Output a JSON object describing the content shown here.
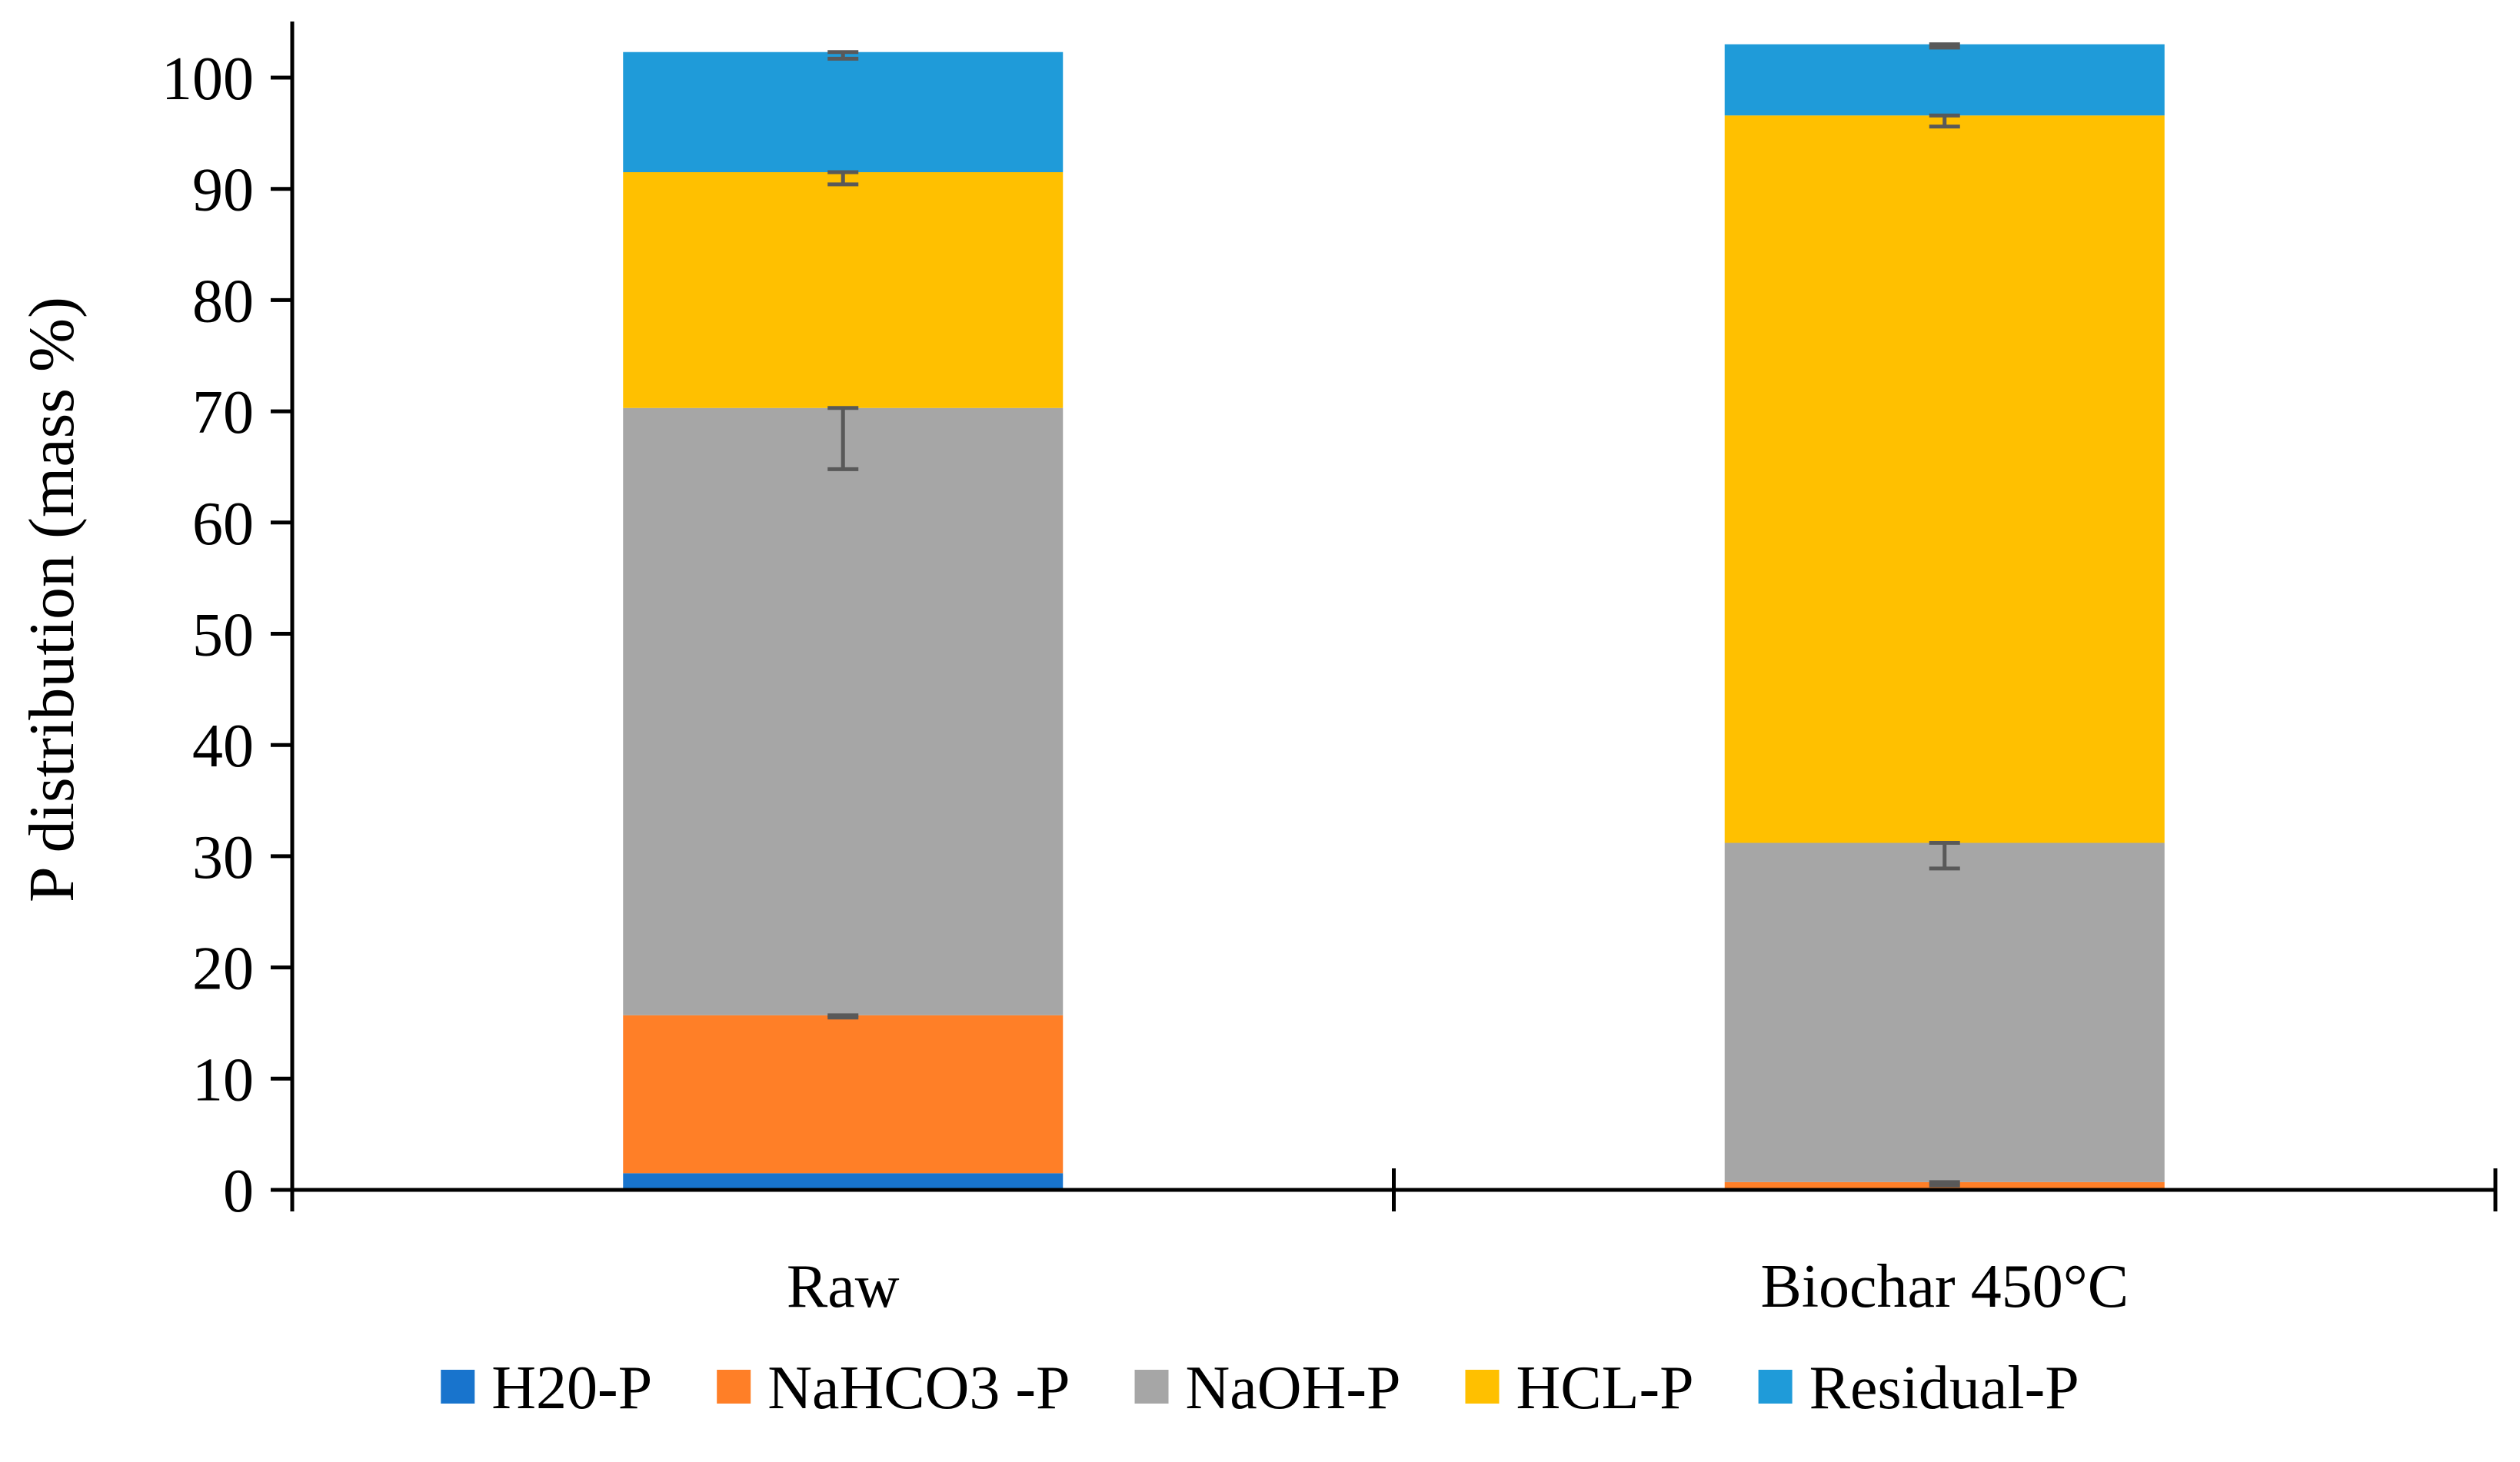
{
  "chart_data": {
    "type": "stacked_bar",
    "title": "",
    "xlabel": "",
    "ylabel": "P distribution (mass %)",
    "ylim": [
      0,
      100
    ],
    "yticks": [
      0,
      10,
      20,
      30,
      40,
      50,
      60,
      70,
      80,
      90,
      100
    ],
    "grid": false,
    "legend_position": "bottom",
    "categories": [
      "Raw",
      "Biochar 450°C"
    ],
    "series": [
      {
        "name": "H20-P",
        "color": "#1874CD",
        "values": [
          1.5,
          0.0
        ],
        "errors": [
          null,
          null
        ]
      },
      {
        "name": "NaHCO3 -P",
        "color": "#FF7F27",
        "values": [
          14.2,
          0.7
        ],
        "errors": [
          0.2,
          0.3
        ]
      },
      {
        "name": "NaOH-P",
        "color": "#A6A6A6",
        "values": [
          54.6,
          30.5
        ],
        "errors": [
          5.5,
          2.3
        ]
      },
      {
        "name": "HCL-P",
        "color": "#FFC000",
        "values": [
          21.2,
          65.4
        ],
        "errors": [
          1.1,
          1.0
        ]
      },
      {
        "name": "Residual-P",
        "color": "#1F9BD9",
        "values": [
          10.8,
          6.4
        ],
        "errors": [
          0.6,
          0.3
        ]
      }
    ]
  }
}
